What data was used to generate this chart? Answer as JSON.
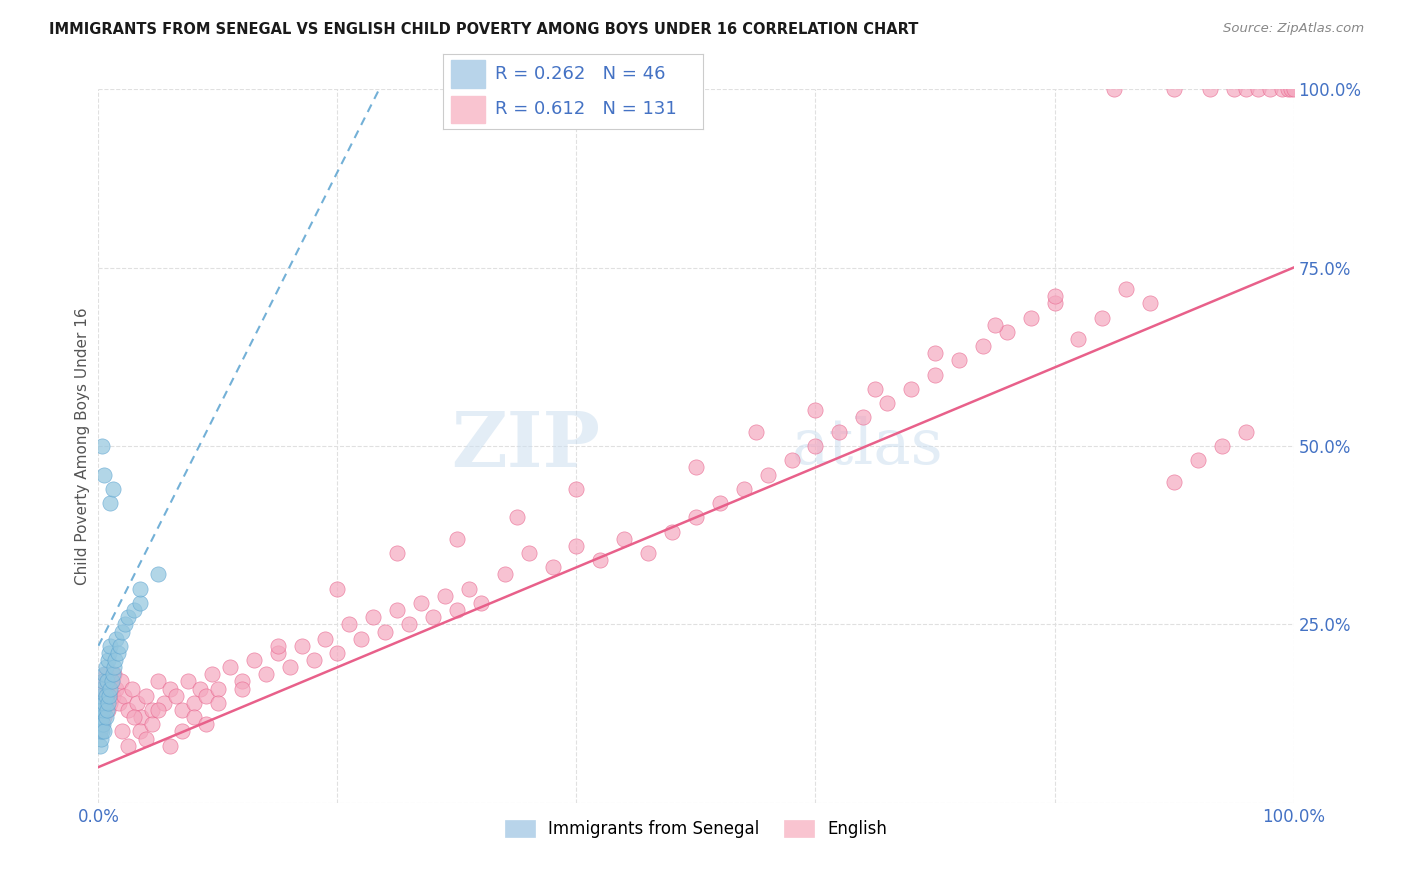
{
  "title": "IMMIGRANTS FROM SENEGAL VS ENGLISH CHILD POVERTY AMONG BOYS UNDER 16 CORRELATION CHART",
  "source": "Source: ZipAtlas.com",
  "ylabel": "Child Poverty Among Boys Under 16",
  "xlim": [
    0.0,
    1.0
  ],
  "ylim": [
    0.0,
    1.0
  ],
  "legend_r1": "R = 0.262",
  "legend_n1": "N = 46",
  "legend_r2": "R = 0.612",
  "legend_n2": "N = 131",
  "color_blue": "#92c5de",
  "color_pink": "#f4a8bf",
  "color_legend_blue": "#b8d4ea",
  "color_legend_pink": "#f9c4d0",
  "color_label": "#4472c4",
  "watermark_color": "#d0e4f5",
  "background_color": "#ffffff",
  "grid_color": "#e0e0e0",
  "blue_trend_color": "#5ba3d0",
  "pink_trend_color": "#e8608a",
  "blue_x": [
    0.001,
    0.001,
    0.001,
    0.001,
    0.002,
    0.002,
    0.002,
    0.002,
    0.003,
    0.003,
    0.003,
    0.004,
    0.004,
    0.004,
    0.005,
    0.005,
    0.005,
    0.006,
    0.006,
    0.006,
    0.007,
    0.007,
    0.008,
    0.008,
    0.009,
    0.009,
    0.01,
    0.01,
    0.011,
    0.012,
    0.013,
    0.014,
    0.015,
    0.016,
    0.018,
    0.02,
    0.022,
    0.025,
    0.03,
    0.035,
    0.01,
    0.012,
    0.005,
    0.003,
    0.035,
    0.05
  ],
  "blue_y": [
    0.08,
    0.1,
    0.12,
    0.14,
    0.09,
    0.11,
    0.13,
    0.15,
    0.1,
    0.12,
    0.16,
    0.11,
    0.13,
    0.17,
    0.1,
    0.14,
    0.18,
    0.12,
    0.15,
    0.19,
    0.13,
    0.17,
    0.14,
    0.2,
    0.15,
    0.21,
    0.16,
    0.22,
    0.17,
    0.18,
    0.19,
    0.2,
    0.23,
    0.21,
    0.22,
    0.24,
    0.25,
    0.26,
    0.27,
    0.28,
    0.42,
    0.44,
    0.46,
    0.5,
    0.3,
    0.32
  ],
  "pink_x": [
    0.001,
    0.001,
    0.002,
    0.002,
    0.003,
    0.003,
    0.004,
    0.004,
    0.005,
    0.005,
    0.006,
    0.006,
    0.007,
    0.008,
    0.009,
    0.01,
    0.011,
    0.012,
    0.013,
    0.015,
    0.017,
    0.019,
    0.021,
    0.025,
    0.028,
    0.032,
    0.036,
    0.04,
    0.045,
    0.05,
    0.055,
    0.06,
    0.065,
    0.07,
    0.075,
    0.08,
    0.085,
    0.09,
    0.095,
    0.1,
    0.11,
    0.12,
    0.13,
    0.14,
    0.15,
    0.16,
    0.17,
    0.18,
    0.19,
    0.2,
    0.21,
    0.22,
    0.23,
    0.24,
    0.25,
    0.26,
    0.27,
    0.28,
    0.29,
    0.3,
    0.31,
    0.32,
    0.34,
    0.36,
    0.38,
    0.4,
    0.42,
    0.44,
    0.46,
    0.48,
    0.5,
    0.52,
    0.54,
    0.56,
    0.58,
    0.6,
    0.62,
    0.64,
    0.66,
    0.68,
    0.7,
    0.72,
    0.74,
    0.76,
    0.78,
    0.8,
    0.82,
    0.84,
    0.86,
    0.88,
    0.9,
    0.92,
    0.94,
    0.96,
    0.02,
    0.025,
    0.03,
    0.035,
    0.04,
    0.045,
    0.05,
    0.06,
    0.07,
    0.08,
    0.09,
    0.1,
    0.12,
    0.15,
    0.2,
    0.25,
    0.3,
    0.35,
    0.4,
    0.5,
    0.55,
    0.6,
    0.65,
    0.7,
    0.75,
    0.8,
    0.85,
    0.9,
    0.93,
    0.95,
    0.96,
    0.97,
    0.98,
    0.99,
    0.995,
    0.998,
    1.0
  ],
  "pink_y": [
    0.1,
    0.14,
    0.12,
    0.16,
    0.11,
    0.15,
    0.13,
    0.17,
    0.12,
    0.16,
    0.14,
    0.18,
    0.15,
    0.13,
    0.16,
    0.14,
    0.17,
    0.15,
    0.18,
    0.16,
    0.14,
    0.17,
    0.15,
    0.13,
    0.16,
    0.14,
    0.12,
    0.15,
    0.13,
    0.17,
    0.14,
    0.16,
    0.15,
    0.13,
    0.17,
    0.14,
    0.16,
    0.15,
    0.18,
    0.16,
    0.19,
    0.17,
    0.2,
    0.18,
    0.21,
    0.19,
    0.22,
    0.2,
    0.23,
    0.21,
    0.25,
    0.23,
    0.26,
    0.24,
    0.27,
    0.25,
    0.28,
    0.26,
    0.29,
    0.27,
    0.3,
    0.28,
    0.32,
    0.35,
    0.33,
    0.36,
    0.34,
    0.37,
    0.35,
    0.38,
    0.4,
    0.42,
    0.44,
    0.46,
    0.48,
    0.5,
    0.52,
    0.54,
    0.56,
    0.58,
    0.6,
    0.62,
    0.64,
    0.66,
    0.68,
    0.7,
    0.65,
    0.68,
    0.72,
    0.7,
    0.45,
    0.48,
    0.5,
    0.52,
    0.1,
    0.08,
    0.12,
    0.1,
    0.09,
    0.11,
    0.13,
    0.08,
    0.1,
    0.12,
    0.11,
    0.14,
    0.16,
    0.22,
    0.3,
    0.35,
    0.37,
    0.4,
    0.44,
    0.47,
    0.52,
    0.55,
    0.58,
    0.63,
    0.67,
    0.71,
    1.0,
    1.0,
    1.0,
    1.0,
    1.0,
    1.0,
    1.0,
    1.0,
    1.0,
    1.0,
    1.0
  ]
}
